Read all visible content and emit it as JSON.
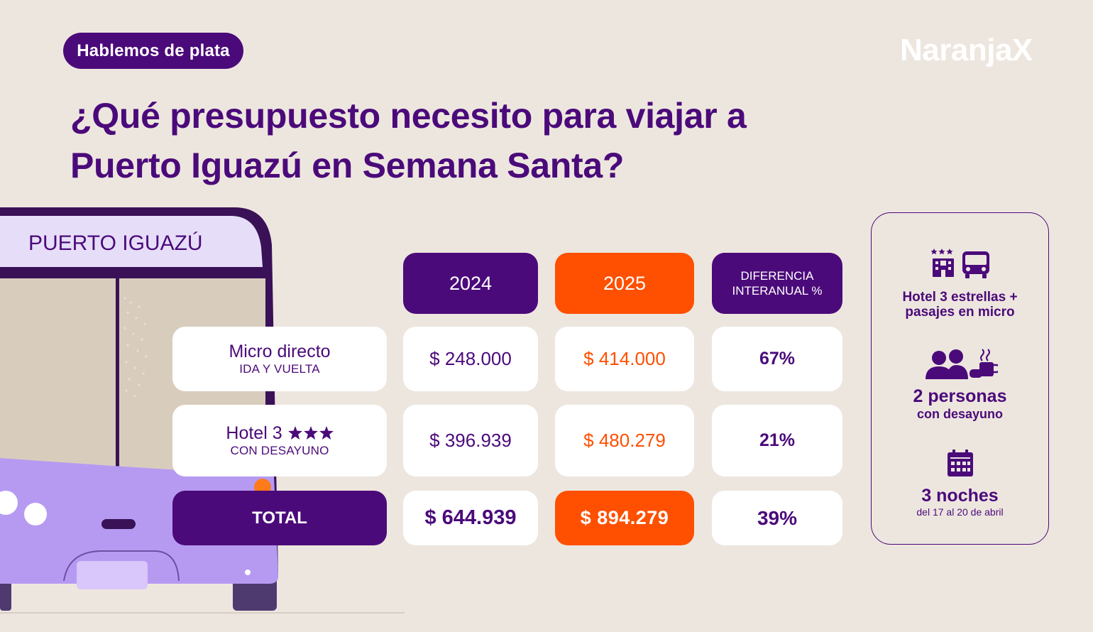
{
  "badge": "Hablemos de plata",
  "brand": "NaranjaX",
  "title_line1": "¿Qué presupuesto necesito para viajar a",
  "title_line2": "Puerto Iguazú en Semana Santa?",
  "bus_sign": "PUERTO IGUAZÚ",
  "table": {
    "headers": {
      "y2024": "2024",
      "y2025": "2025",
      "diff_line1": "DIFERENCIA",
      "diff_line2": "INTERANUAL %"
    },
    "rows": [
      {
        "title": "Micro directo",
        "sub": "IDA Y VUELTA",
        "v2024": "$ 248.000",
        "v2025": "$ 414.000",
        "diff": "67%"
      },
      {
        "title": "Hotel 3",
        "sub": "CON DESAYUNO",
        "stars": 3,
        "v2024": "$ 396.939",
        "v2025": "$ 480.279",
        "diff": "21%"
      }
    ],
    "total": {
      "label": "TOTAL",
      "v2024": "$ 644.939",
      "v2025": "$ 894.279",
      "diff": "39%"
    }
  },
  "info": {
    "item1_line1": "Hotel 3 estrellas +",
    "item1_line2": "pasajes en micro",
    "item2_line1": "2 personas",
    "item2_line2": "con desayuno",
    "item3_line1": "3 noches",
    "item3_line2": "del 17 al 20 de abril"
  },
  "colors": {
    "purple": "#4b0a7a",
    "orange": "#fe5000",
    "background": "#ede6df",
    "bus": "#b69af2"
  },
  "icons": [
    "hotel-icon",
    "bus-icon",
    "people-icon",
    "coffee-icon",
    "calendar-icon",
    "star-icon"
  ]
}
